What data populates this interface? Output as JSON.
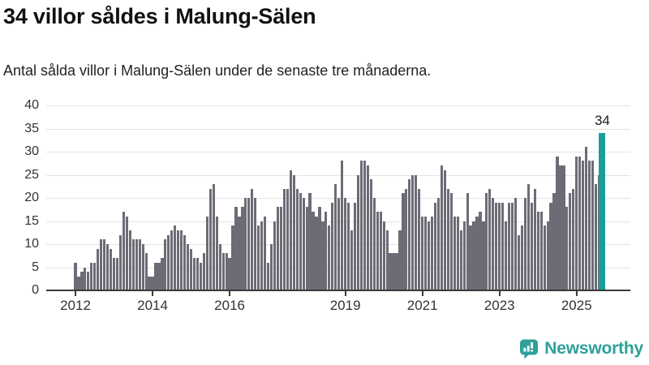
{
  "header": {
    "title": "34 villor såldes i Malung-Sälen",
    "subtitle": "Antal sålda villor i Malung-Sälen under de senaste tre månaderna."
  },
  "colors": {
    "bar": "#6c6c76",
    "highlight": "#1b9e9a",
    "grid": "#e3e3e3",
    "axis": "#3b3b3b",
    "tick_label": "#333333",
    "logo": "#2ea099"
  },
  "logo": {
    "text": "Newsworthy",
    "icon": "newsworthy-bar-chart-bubble-icon"
  },
  "chart_data": {
    "type": "bar",
    "title": "34 villor såldes i Malung-Sälen",
    "subtitle": "Antal sålda villor i Malung-Sälen under de senaste tre månaderna.",
    "unit": "sålda villor (rullande 3 månader)",
    "frequency": "monthly",
    "start_month": "2012-01",
    "end_month": "2025-09",
    "grid": true,
    "legend": false,
    "y_axis": {
      "min": 0,
      "max": 40,
      "step": 5,
      "tick_labels": [
        "0",
        "5",
        "10",
        "15",
        "20",
        "25",
        "30",
        "35",
        "40"
      ]
    },
    "x_axis": {
      "ticks": [
        {
          "label": "2012",
          "month_index": 0
        },
        {
          "label": "2014",
          "month_index": 24
        },
        {
          "label": "2016",
          "month_index": 48
        },
        {
          "label": "2019",
          "month_index": 84
        },
        {
          "label": "2021",
          "month_index": 108
        },
        {
          "label": "2023",
          "month_index": 132
        },
        {
          "label": "2025",
          "month_index": 156
        }
      ]
    },
    "values": [
      6,
      3,
      4,
      5,
      4,
      6,
      6,
      9,
      11,
      11,
      10,
      9,
      7,
      7,
      12,
      17,
      16,
      13,
      11,
      11,
      11,
      10,
      8,
      3,
      3,
      6,
      6,
      7,
      11,
      12,
      13,
      14,
      13,
      13,
      12,
      10,
      9,
      7,
      7,
      6,
      8,
      16,
      22,
      23,
      16,
      10,
      8,
      8,
      7,
      14,
      18,
      16,
      18,
      20,
      20,
      22,
      20,
      14,
      15,
      16,
      6,
      10,
      15,
      18,
      18,
      22,
      22,
      26,
      25,
      22,
      21,
      20,
      18,
      21,
      17,
      16,
      18,
      15,
      17,
      14,
      19,
      23,
      20,
      28,
      20,
      19,
      13,
      19,
      25,
      28,
      28,
      27,
      24,
      20,
      17,
      17,
      15,
      13,
      8,
      8,
      8,
      13,
      21,
      22,
      24,
      25,
      25,
      22,
      16,
      16,
      15,
      16,
      19,
      20,
      27,
      26,
      22,
      21,
      16,
      16,
      13,
      15,
      21,
      14,
      15,
      16,
      17,
      15,
      21,
      22,
      20,
      19,
      19,
      19,
      15,
      19,
      19,
      20,
      12,
      14,
      20,
      23,
      19,
      22,
      17,
      17,
      14,
      15,
      19,
      21,
      29,
      27,
      27,
      18,
      21,
      22,
      29,
      29,
      28,
      31,
      28,
      28,
      23,
      25,
      34
    ],
    "highlight": {
      "index": 164,
      "value": 34,
      "label": "34"
    }
  }
}
